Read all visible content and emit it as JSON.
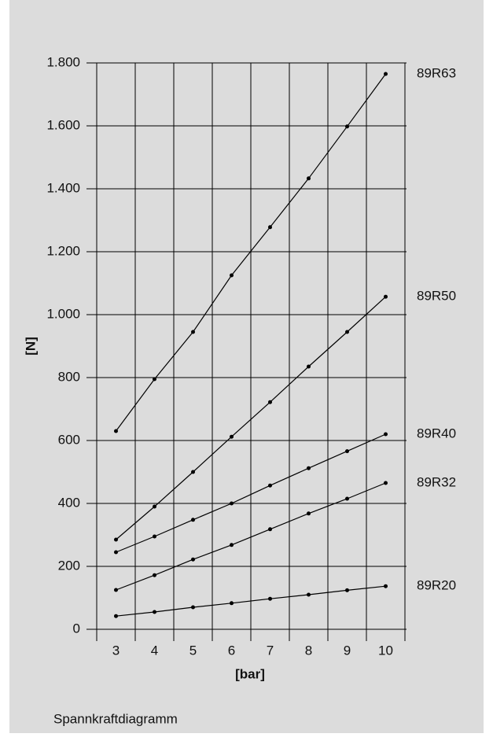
{
  "chart_data": {
    "type": "line",
    "caption": "Spannkraftdiagramm",
    "x_label": "[bar]",
    "y_label": "[N]",
    "categories": [
      "3",
      "4",
      "5",
      "6",
      "7",
      "8",
      "9",
      "10"
    ],
    "series": [
      {
        "name": "89R63",
        "color": "#000000",
        "values": [
          630,
          795,
          945,
          1125,
          1278,
          1433,
          1598,
          1765
        ]
      },
      {
        "name": "89R50",
        "color": "#000000",
        "values": [
          285,
          390,
          500,
          612,
          722,
          835,
          945,
          1057
        ]
      },
      {
        "name": "89R40",
        "color": "#000000",
        "values": [
          245,
          295,
          348,
          400,
          457,
          512,
          566,
          620
        ]
      },
      {
        "name": "89R32",
        "color": "#000000",
        "values": [
          125,
          172,
          222,
          268,
          318,
          368,
          415,
          465
        ]
      },
      {
        "name": "89R20",
        "color": "#000000",
        "values": [
          42,
          55,
          70,
          83,
          97,
          110,
          124,
          137
        ]
      }
    ],
    "ylim": [
      0,
      1800
    ],
    "yticks": [
      0,
      200,
      400,
      600,
      800,
      {
        "value": 1000,
        "label": "1.000"
      },
      {
        "value": 1200,
        "label": "1.200"
      },
      {
        "value": 1400,
        "label": "1.400"
      },
      {
        "value": 1600,
        "label": "1.600"
      },
      {
        "value": 1800,
        "label": "1.800"
      }
    ],
    "grid": true
  }
}
